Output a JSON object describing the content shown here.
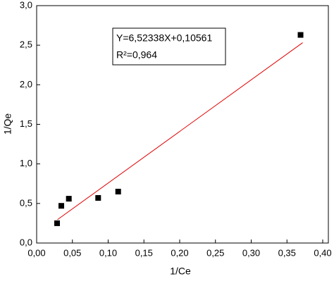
{
  "chart_data": {
    "type": "scatter",
    "x_label": "1/Ce",
    "y_label": "1/Qe",
    "annotations": [
      "Y=6,52338X+0,10561",
      "R²=0,964"
    ],
    "x": [
      0.0286,
      0.0345,
      0.045,
      0.086,
      0.114,
      0.369
    ],
    "values": [
      0.25,
      0.47,
      0.56,
      0.57,
      0.65,
      2.63
    ],
    "color": "#000000",
    "fit_line": {
      "x": [
        0.029,
        0.372
      ],
      "values": [
        0.295,
        2.532
      ],
      "color": "#e00000"
    },
    "xlim": [
      0,
      0.4
    ],
    "ylim": [
      0,
      3
    ],
    "xticks": [
      {
        "value": 0,
        "label": "0,00"
      },
      {
        "value": 0.05,
        "label": "0,05"
      },
      {
        "value": 0.1,
        "label": "0,10"
      },
      {
        "value": 0.15,
        "label": "0,15"
      },
      {
        "value": 0.2,
        "label": "0,20"
      },
      {
        "value": 0.25,
        "label": "0,25"
      },
      {
        "value": 0.3,
        "label": "0,30"
      },
      {
        "value": 0.35,
        "label": "0,35"
      },
      {
        "value": 0.4,
        "label": "0,40"
      }
    ],
    "yticks": [
      {
        "value": 0,
        "label": "0,0"
      },
      {
        "value": 0.5,
        "label": "0,5"
      },
      {
        "value": 1,
        "label": "1,0"
      },
      {
        "value": 1.5,
        "label": "1,5"
      },
      {
        "value": 2,
        "label": "2,0"
      },
      {
        "value": 2.5,
        "label": "2,5"
      },
      {
        "value": 3,
        "label": "3,0"
      }
    ]
  }
}
